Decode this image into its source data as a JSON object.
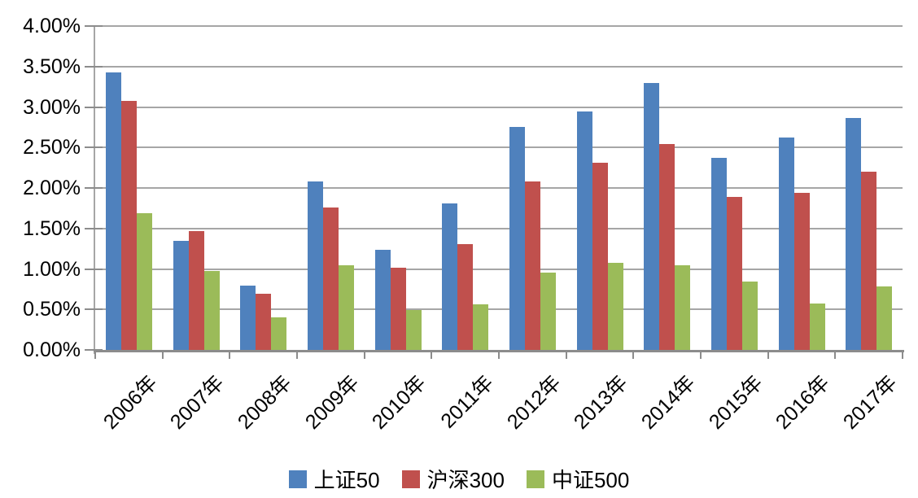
{
  "chart_data": {
    "type": "bar",
    "title": "",
    "categories": [
      "2006年",
      "2007年",
      "2008年",
      "2009年",
      "2010年",
      "2011年",
      "2012年",
      "2013年",
      "2014年",
      "2015年",
      "2016年",
      "2017年"
    ],
    "series": [
      {
        "name": "上证50",
        "color": "#4F81BD",
        "values": [
          3.43,
          1.35,
          0.79,
          2.08,
          1.24,
          1.81,
          2.75,
          2.94,
          3.3,
          2.37,
          2.62,
          2.86
        ]
      },
      {
        "name": "沪深300",
        "color": "#C0504D",
        "values": [
          3.08,
          1.47,
          0.69,
          1.76,
          1.02,
          1.31,
          2.08,
          2.31,
          2.54,
          1.89,
          1.94,
          2.2
        ]
      },
      {
        "name": "中证500",
        "color": "#9BBB59",
        "values": [
          1.69,
          0.98,
          0.4,
          1.05,
          0.49,
          0.56,
          0.95,
          1.08,
          1.05,
          0.84,
          0.57,
          0.78
        ]
      }
    ],
    "value_unit": "%",
    "ylim": [
      0,
      4
    ],
    "yticks": [
      "0.00%",
      "0.50%",
      "1.00%",
      "1.50%",
      "2.00%",
      "2.50%",
      "3.00%",
      "3.50%",
      "4.00%"
    ],
    "grid": true,
    "legend_position": "bottom",
    "colors": {
      "gridline": "#A6A6A6",
      "axis_line": "#8C8C8C",
      "text": "#000000",
      "background": "#FFFFFF"
    }
  }
}
